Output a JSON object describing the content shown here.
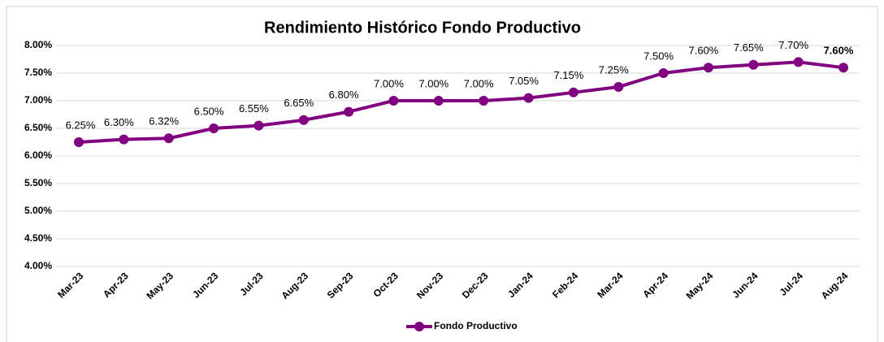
{
  "chart_data": {
    "type": "line",
    "title": "Rendimiento Histórico Fondo Productivo",
    "categories": [
      "Mar-23",
      "Apr-23",
      "May-23",
      "Jun-23",
      "Jul-23",
      "Aug-23",
      "Sep-23",
      "Oct-23",
      "Nov-23",
      "Dec-23",
      "Jan-24",
      "Feb-24",
      "Mar-24",
      "Apr-24",
      "May-24",
      "Jun-24",
      "Jul-24",
      "Aug-24"
    ],
    "series": [
      {
        "name": "Fondo Productivo",
        "color": "#800080",
        "values": [
          6.25,
          6.3,
          6.32,
          6.5,
          6.55,
          6.65,
          6.8,
          7.0,
          7.0,
          7.0,
          7.05,
          7.15,
          7.25,
          7.5,
          7.6,
          7.65,
          7.7,
          7.6
        ],
        "value_labels": [
          "6.25%",
          "6.30%",
          "6.32%",
          "6.50%",
          "6.55%",
          "6.65%",
          "6.80%",
          "7.00%",
          "7.00%",
          "7.00%",
          "7.05%",
          "7.15%",
          "7.25%",
          "7.50%",
          "7.60%",
          "7.65%",
          "7.70%",
          "7.60%"
        ]
      }
    ],
    "ylim": [
      4,
      8
    ],
    "yticks": [
      {
        "value": 4,
        "label": "4.00%"
      },
      {
        "value": 4.5,
        "label": "4.50%"
      },
      {
        "value": 5,
        "label": "5.00%"
      },
      {
        "value": 5.5,
        "label": "5.50%"
      },
      {
        "value": 6,
        "label": "6.00%"
      },
      {
        "value": 6.5,
        "label": "6.50%"
      },
      {
        "value": 7,
        "label": "7.00%"
      },
      {
        "value": 7.5,
        "label": "7.50%"
      },
      {
        "value": 8,
        "label": "8.00%"
      }
    ],
    "grid": true,
    "legend": "bottom"
  }
}
